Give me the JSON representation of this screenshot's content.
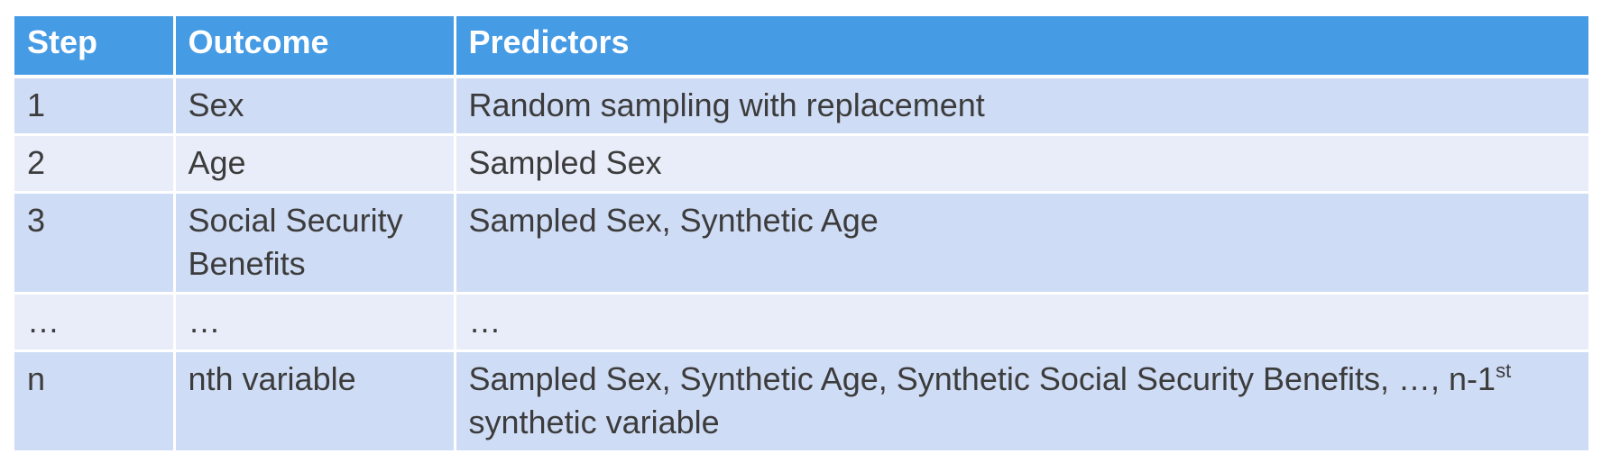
{
  "table": {
    "headers": [
      "Step",
      "Outcome",
      "Predictors"
    ],
    "rows": [
      {
        "step": "1",
        "outcome": "Sex",
        "predictors": "Random sampling with replacement"
      },
      {
        "step": "2",
        "outcome": "Age",
        "predictors": "Sampled Sex"
      },
      {
        "step": "3",
        "outcome": "Social Security Benefits",
        "predictors": "Sampled Sex, Synthetic Age"
      },
      {
        "step": "…",
        "outcome": "…",
        "predictors": "…"
      },
      {
        "step": "n",
        "outcome": "nth variable",
        "predictors_main": "Sampled Sex, Synthetic Age, Synthetic Social Security Benefits, …, n-1",
        "predictors_sup": "st",
        "predictors_end": "synthetic variable"
      }
    ]
  },
  "colors": {
    "header": "#469be5",
    "row_dark": "#cfdcf5",
    "row_light": "#e8edf9"
  }
}
